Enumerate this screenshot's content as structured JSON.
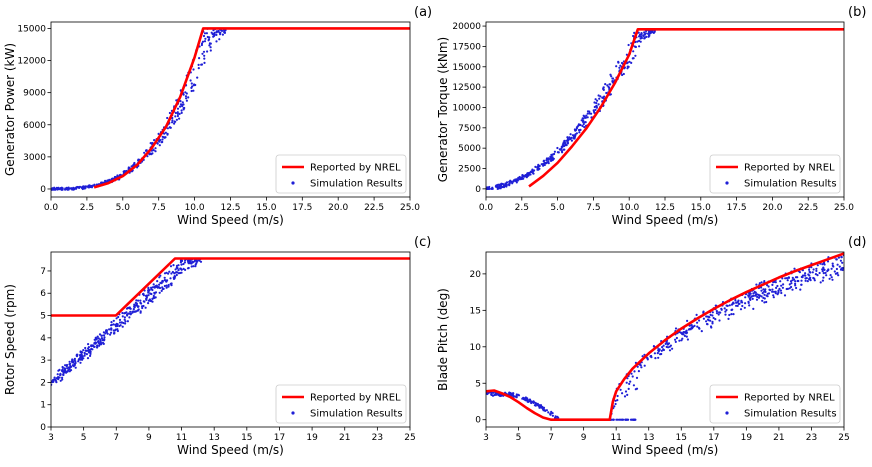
{
  "figure": {
    "colors": {
      "nrel": "#ff0000",
      "sim": "#1f1fd6",
      "frame": "#000000",
      "legend_border": "#cccccc"
    }
  },
  "chart_data": [
    {
      "id": "a",
      "panel_label": "(a)",
      "type": "line+scatter",
      "xlabel": "Wind Speed (m/s)",
      "ylabel": "Generator Power (kW)",
      "xlim": [
        0,
        25
      ],
      "ylim": [
        -750,
        15600
      ],
      "xticks": [
        0,
        2.5,
        5,
        7.5,
        10,
        12.5,
        15,
        17.5,
        20,
        22.5,
        25
      ],
      "xtick_labels": [
        "0.0",
        "2.5",
        "5.0",
        "7.5",
        "10.0",
        "12.5",
        "15.0",
        "17.5",
        "20.0",
        "22.5",
        "25.0"
      ],
      "yticks": [
        0,
        3000,
        6000,
        9000,
        12000,
        15000
      ],
      "ytick_labels": [
        "0",
        "3000",
        "6000",
        "9000",
        "12000",
        "15000"
      ],
      "legend": {
        "position": "lower-right",
        "entries": [
          "Reported by NREL",
          "Simulation Results"
        ]
      },
      "series": [
        {
          "name": "Reported by NREL",
          "kind": "line",
          "x": [
            3,
            4,
            5,
            6,
            7,
            8,
            9,
            10,
            10.6,
            25
          ],
          "y": [
            150,
            550,
            1200,
            2250,
            3800,
            5800,
            8600,
            12300,
            15000,
            15000
          ]
        },
        {
          "name": "Simulation Results",
          "kind": "scatter",
          "model": "power",
          "x_range": [
            0,
            12.2
          ],
          "count": 420,
          "spread_below": 0.25
        }
      ]
    },
    {
      "id": "b",
      "panel_label": "(b)",
      "type": "line+scatter",
      "xlabel": "Wind Speed (m/s)",
      "ylabel": "Generator Torque (kNm)",
      "xlim": [
        0,
        25
      ],
      "ylim": [
        -1000,
        20500
      ],
      "xticks": [
        0,
        2.5,
        5,
        7.5,
        10,
        12.5,
        15,
        17.5,
        20,
        22.5,
        25
      ],
      "xtick_labels": [
        "0.0",
        "2.5",
        "5.0",
        "7.5",
        "10.0",
        "12.5",
        "15.0",
        "17.5",
        "20.0",
        "22.5",
        "25.0"
      ],
      "yticks": [
        0,
        2500,
        5000,
        7500,
        10000,
        12500,
        15000,
        17500,
        20000
      ],
      "ytick_labels": [
        "0",
        "2500",
        "5000",
        "7500",
        "10000",
        "12500",
        "15000",
        "17500",
        "20000"
      ],
      "legend": {
        "position": "lower-right",
        "entries": [
          "Reported by NREL",
          "Simulation Results"
        ]
      },
      "series": [
        {
          "name": "Reported by NREL",
          "kind": "line",
          "x": [
            3,
            4,
            5,
            6,
            7,
            8,
            9,
            10,
            10.6,
            25
          ],
          "y": [
            300,
            1600,
            3200,
            5200,
            7400,
            10000,
            13000,
            16500,
            19600,
            19600
          ]
        },
        {
          "name": "Simulation Results",
          "kind": "scatter",
          "model": "torque",
          "x_range": [
            0,
            11.8
          ],
          "count": 420,
          "spread_below": 0.18
        }
      ]
    },
    {
      "id": "c",
      "panel_label": "(c)",
      "type": "line+scatter",
      "xlabel": "Wind Speed (m/s)",
      "ylabel": "Rotor Speed (rpm)",
      "xlim": [
        3,
        25
      ],
      "ylim": [
        0,
        7.85
      ],
      "xticks": [
        3,
        5,
        7,
        9,
        11,
        13,
        15,
        17,
        19,
        21,
        23,
        25
      ],
      "xtick_labels": [
        "3",
        "5",
        "7",
        "9",
        "11",
        "13",
        "15",
        "17",
        "19",
        "21",
        "23",
        "25"
      ],
      "yticks": [
        0,
        1,
        2,
        3,
        4,
        5,
        6,
        7
      ],
      "ytick_labels": [
        "0",
        "1",
        "2",
        "3",
        "4",
        "5",
        "6",
        "7"
      ],
      "legend": {
        "position": "lower-right",
        "entries": [
          "Reported by NREL",
          "Simulation Results"
        ]
      },
      "series": [
        {
          "name": "Reported by NREL",
          "kind": "line",
          "x": [
            3,
            6.98,
            10.6,
            25
          ],
          "y": [
            5.0,
            5.0,
            7.56,
            7.56
          ]
        },
        {
          "name": "Simulation Results",
          "kind": "scatter",
          "model": "rotor",
          "x_range": [
            3,
            12.3
          ],
          "count": 440,
          "spread_below": 0.12
        }
      ]
    },
    {
      "id": "d",
      "panel_label": "(d)",
      "type": "line+scatter",
      "xlabel": "Wind Speed (m/s)",
      "ylabel": "Blade Pitch (deg)",
      "xlim": [
        3,
        25
      ],
      "ylim": [
        -1,
        23
      ],
      "xticks": [
        3,
        5,
        7,
        9,
        11,
        13,
        15,
        17,
        19,
        21,
        23,
        25
      ],
      "xtick_labels": [
        "3",
        "5",
        "7",
        "9",
        "11",
        "13",
        "15",
        "17",
        "19",
        "21",
        "23",
        "25"
      ],
      "yticks": [
        0,
        5,
        10,
        15,
        20
      ],
      "ytick_labels": [
        "0",
        "5",
        "10",
        "15",
        "20"
      ],
      "legend": {
        "position": "lower-right",
        "entries": [
          "Reported by NREL",
          "Simulation Results"
        ]
      },
      "series": [
        {
          "name": "Reported by NREL",
          "kind": "line",
          "x": [
            3,
            3.5,
            4,
            4.5,
            5,
            5.5,
            6,
            6.5,
            7,
            7.5,
            10.6,
            10.8,
            11,
            11.5,
            12,
            13,
            14,
            15,
            16,
            17,
            18,
            19,
            20,
            21,
            22,
            23,
            24,
            25
          ],
          "y": [
            3.9,
            4.0,
            3.6,
            3.1,
            2.4,
            1.6,
            0.9,
            0.3,
            0.0,
            0.0,
            0.0,
            2.5,
            3.9,
            5.6,
            7.0,
            9.1,
            10.9,
            12.5,
            13.9,
            15.2,
            16.4,
            17.5,
            18.5,
            19.5,
            20.4,
            21.2,
            22.0,
            22.8
          ]
        },
        {
          "name": "Simulation Results",
          "kind": "scatter",
          "model": "pitch",
          "x_range": [
            3,
            25
          ],
          "count": 760,
          "spread_below": 0.12
        }
      ]
    }
  ]
}
